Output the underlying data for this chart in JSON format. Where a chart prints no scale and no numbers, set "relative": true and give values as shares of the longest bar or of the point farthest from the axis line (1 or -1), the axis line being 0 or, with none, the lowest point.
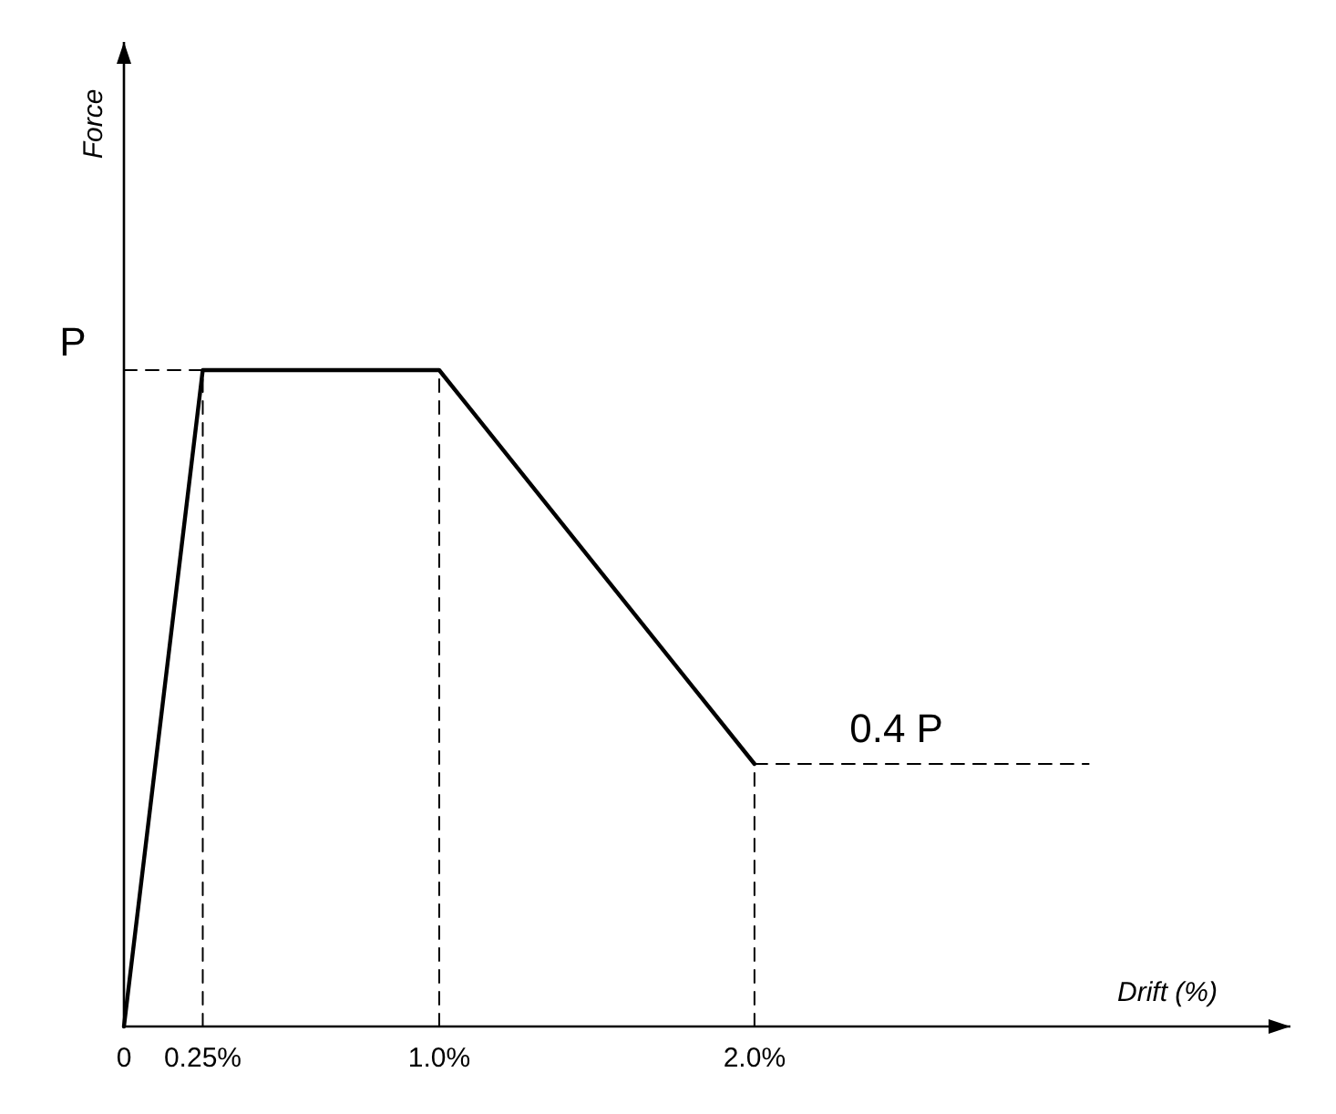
{
  "chart_data": {
    "type": "line",
    "xlabel": "Drift (%)",
    "xlim": [
      0,
      3.7
    ],
    "relative": true,
    "xticks": [
      {
        "value": 0,
        "label": "0"
      },
      {
        "value": 0.25,
        "label": "0.25%"
      },
      {
        "value": 1,
        "label": "1.0%"
      },
      {
        "value": 2,
        "label": "2.0%"
      }
    ],
    "series": [
      {
        "color": "#000000",
        "x": [
          0,
          0.25,
          1,
          2
        ],
        "values": [
          0,
          1,
          1,
          0.4
        ],
        "line_style": "solid"
      },
      {
        "color": "#000000",
        "x": [
          0,
          0.25
        ],
        "values": [
          1,
          1
        ],
        "line_style": "dashed"
      },
      {
        "color": "#000000",
        "x": [
          0.25,
          0.25
        ],
        "values": [
          0,
          1
        ],
        "line_style": "dashed"
      },
      {
        "color": "#000000",
        "x": [
          1,
          1
        ],
        "values": [
          0,
          1
        ],
        "line_style": "dashed"
      },
      {
        "color": "#000000",
        "x": [
          2,
          2
        ],
        "values": [
          0,
          0.4
        ],
        "line_style": "dashed"
      },
      {
        "color": "#000000",
        "x": [
          2,
          3.06
        ],
        "values": [
          0.4,
          0.4
        ],
        "line_style": "dashed"
      }
    ],
    "annotations": [
      "Force",
      {
        "text": "P",
        "x": 0,
        "y": 1
      },
      {
        "text": "0.4 P",
        "x": 2.45,
        "y": 0.4
      }
    ],
    "marker": "none"
  }
}
